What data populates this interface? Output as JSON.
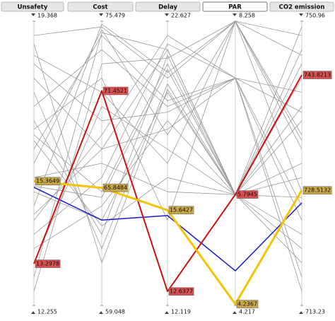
{
  "chart_data": {
    "type": "parallel",
    "axes": [
      {
        "name": "Unsafety",
        "lim": [
          12.255,
          19.368
        ]
      },
      {
        "name": "Cost",
        "lim": [
          59.048,
          75.479
        ]
      },
      {
        "name": "Delay",
        "lim": [
          12.119,
          22.627
        ]
      },
      {
        "name": "PAR",
        "lim": [
          4.217,
          8.258
        ]
      },
      {
        "name": "CO2 emission",
        "lim": [
          713.23,
          750.96
        ]
      }
    ],
    "selected_axis": 3,
    "series": [
      {
        "color": "#9a9a9a",
        "values": [
          19.012,
          75.15,
          20.525,
          8.258,
          735.868
        ]
      },
      {
        "color": "#9a9a9a",
        "values": [
          17.945,
          68.085,
          21.576,
          5.793,
          745.301
        ]
      },
      {
        "color": "#9a9a9a",
        "values": [
          17.234,
          73.836,
          19.475,
          7.45,
          724.549
        ]
      },
      {
        "color": "#9a9a9a",
        "values": [
          16.523,
          65.62,
          21.051,
          5.793,
          720.776
        ]
      },
      {
        "color": "#9a9a9a",
        "values": [
          15.812,
          74.986,
          18.424,
          8.258,
          749.074
        ]
      },
      {
        "color": "#9a9a9a",
        "values": [
          15.1,
          63.977,
          20.0,
          5.793,
          739.641
        ]
      },
      {
        "color": "#9a9a9a",
        "values": [
          14.389,
          68.907,
          22.102,
          7.45,
          717.003
        ]
      },
      {
        "color": "#9a9a9a",
        "values": [
          13.678,
          64.799,
          18.949,
          5.793,
          732.095
        ]
      },
      {
        "color": "#9a9a9a",
        "values": [
          18.514,
          71.371,
          17.373,
          8.258,
          728.322
        ]
      },
      {
        "color": "#9a9a9a",
        "values": [
          16.878,
          63.156,
          21.366,
          5.793,
          747.187
        ]
      },
      {
        "color": "#9a9a9a",
        "values": [
          16.167,
          74.657,
          19.685,
          7.45,
          741.528
        ]
      },
      {
        "color": "#9a9a9a",
        "values": [
          15.456,
          67.264,
          16.322,
          5.793,
          718.89
        ]
      },
      {
        "color": "#9a9a9a",
        "values": [
          14.745,
          75.315,
          20.736,
          8.258,
          733.982
        ]
      },
      {
        "color": "#9a9a9a",
        "values": [
          14.033,
          66.442,
          21.786,
          7.45,
          726.436
        ]
      },
      {
        "color": "#9a9a9a",
        "values": [
          13.322,
          70.55,
          17.898,
          5.793,
          743.414
        ]
      },
      {
        "color": "#9a9a9a",
        "values": [
          17.59,
          62.334,
          20.315,
          5.793,
          737.755
        ]
      },
      {
        "color": "#9a9a9a",
        "values": [
          18.301,
          69.728,
          19.264,
          7.45,
          715.117
        ]
      },
      {
        "color": "#9a9a9a",
        "values": [
          12.966,
          74.822,
          21.576,
          5.793,
          730.209
        ]
      },
      {
        "color": "#9a9a9a",
        "values": [
          16.665,
          72.193,
          15.271,
          8.258,
          746.432
        ]
      },
      {
        "color": "#9a9a9a",
        "values": [
          15.242,
          65.292,
          20.841,
          5.793,
          722.663
        ]
      },
      {
        "color": "#9a9a9a",
        "values": [
          14.531,
          68.085,
          18.634,
          7.45,
          738.886
        ]
      },
      {
        "color": "#9a9a9a",
        "values": [
          18.799,
          61.513,
          20.105,
          5.793,
          750.205
        ]
      },
      {
        "color": "#9a9a9a",
        "values": [
          12.611,
          73.014,
          21.261,
          8.258,
          735.113
        ]
      },
      {
        "color": "#9a9a9a",
        "values": [
          16.381,
          63.649,
          16.848,
          5.793,
          727.567
        ]
      },
      {
        "color": "#1a1acc",
        "width": 1.5,
        "values": [
          15.2103,
          63.9812,
          15.4405,
          4.7093,
          726.8541
        ]
      },
      {
        "color": "#cc1111",
        "width": 2,
        "labels": true,
        "label_color": "#d85050",
        "values": [
          13.2978,
          71.4521,
          12.6377,
          5.7945,
          743.8213
        ]
      },
      {
        "color": "#f5c400",
        "width": 3,
        "labels": true,
        "label_color": "#c9a84a",
        "values": [
          15.3649,
          65.8484,
          15.6427,
          4.2367,
          728.5132
        ]
      }
    ]
  }
}
